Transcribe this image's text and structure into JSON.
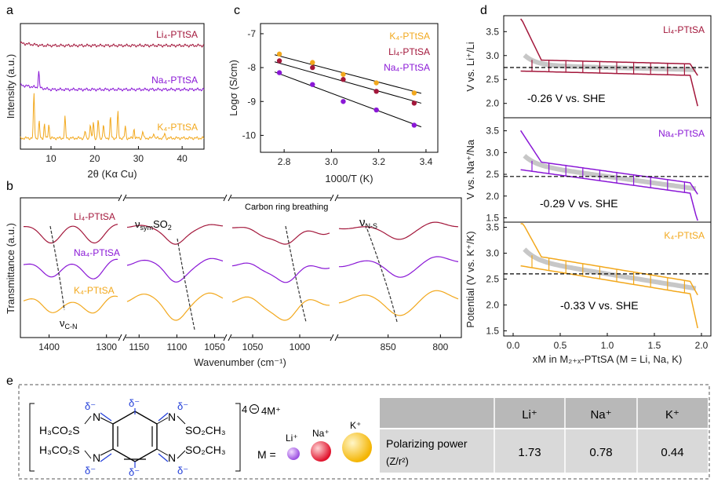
{
  "panel_labels": {
    "a": "a",
    "b": "b",
    "c": "c",
    "d": "d",
    "e": "e"
  },
  "colors": {
    "li": "#a3173b",
    "na": "#8a18d6",
    "k": "#f2a81d",
    "gray": "#c7c7c7",
    "cell_bg": "#d9d9d9"
  },
  "chart_data": [
    {
      "id": "a",
      "type": "line",
      "title": "",
      "xlabel": "2θ (Kα Cu)",
      "ylabel": "Intensity (a.u.)",
      "xlim": [
        3,
        45
      ],
      "xticks": [
        10,
        20,
        30,
        40
      ],
      "series": [
        {
          "name": "Li₄-PTtSA",
          "offset": 2,
          "peaks": []
        },
        {
          "name": "Na₄-PTtSA",
          "offset": 1,
          "peaks": [
            [
              7.2,
              0.35
            ]
          ]
        },
        {
          "name": "K₄-PTtSA",
          "offset": 0,
          "peaks": [
            [
              6.1,
              0.95
            ],
            [
              7.3,
              0.35
            ],
            [
              8.5,
              0.3
            ],
            [
              9.5,
              0.3
            ],
            [
              13.2,
              0.45
            ],
            [
              17.8,
              0.15
            ],
            [
              19,
              0.3
            ],
            [
              19.7,
              0.35
            ],
            [
              20.8,
              0.4
            ],
            [
              22,
              0.3
            ],
            [
              23.6,
              0.45
            ],
            [
              25.3,
              0.55
            ],
            [
              27,
              0.25
            ],
            [
              29,
              0.2
            ],
            [
              31,
              0.15
            ],
            [
              33.5,
              0.12
            ],
            [
              36,
              0.1
            ]
          ]
        }
      ]
    },
    {
      "id": "b",
      "type": "line",
      "xlabel": "Wavenumber (cm⁻¹)",
      "ylabel": "Transmittance (a.u.)",
      "segments": [
        {
          "xlim": [
            1450,
            1275
          ],
          "xticks": [
            "1400",
            "1300"
          ],
          "tick_vals": [
            1400,
            1300
          ]
        },
        {
          "xlim": [
            1170,
            1035
          ],
          "xticks": [
            "1150",
            "1100",
            "1050"
          ],
          "tick_vals": [
            1150,
            1100,
            1050
          ]
        },
        {
          "xlim": [
            1075,
            965
          ],
          "xticks": [
            "1050",
            "1000"
          ],
          "tick_vals": [
            1050,
            1000
          ]
        },
        {
          "xlim": [
            900,
            780
          ],
          "xticks": [
            "850",
            "800"
          ],
          "tick_vals": [
            850,
            800
          ]
        }
      ],
      "series_names": [
        "Li₄-PTtSA",
        "Na₄-PTtSA",
        "K₄-PTtSA"
      ],
      "annotations": {
        "cn": "ν",
        "cn_sub": "C-N",
        "so2": "ν",
        "so2_sub": "sym",
        "so2_tail": "SO",
        "so2_tail_sub": "2",
        "ring": "Carbon ring breathing",
        "ns": "ν",
        "ns_sub": "N-S"
      }
    },
    {
      "id": "c",
      "type": "scatter",
      "xlabel": "1000/T (K)",
      "ylabel": "Logσ (S/cm)",
      "xlim": [
        2.7,
        3.45
      ],
      "ylim": [
        -10.5,
        -6.7
      ],
      "xticks": [
        2.8,
        3.0,
        3.2,
        3.4
      ],
      "yticks": [
        -7,
        -8,
        -9,
        -10
      ],
      "x": [
        2.78,
        2.92,
        3.05,
        3.19,
        3.35
      ],
      "series": [
        {
          "name": "K₄-PTtSA",
          "values": [
            -7.6,
            -7.85,
            -8.2,
            -8.45,
            -8.75
          ],
          "fit": [
            -7.62,
            -8.76
          ]
        },
        {
          "name": "Li₄-PTtSA",
          "values": [
            -7.8,
            -8.0,
            -8.35,
            -8.7,
            -9.05
          ],
          "fit": [
            -7.83,
            -9.05
          ]
        },
        {
          "name": "Na₄-PTtSA",
          "values": [
            -8.15,
            -8.5,
            -9.0,
            -9.25,
            -9.7
          ],
          "fit": [
            -8.13,
            -9.75
          ]
        }
      ]
    },
    {
      "id": "d",
      "type": "line",
      "xlabel": "xM in M₂₊ₓ-PTtSA (M = Li, Na, K)",
      "xlim": [
        -0.1,
        2.1
      ],
      "xticks": [
        0.0,
        0.5,
        1.0,
        1.5,
        2.0
      ],
      "panels": [
        {
          "name": "Li₄-PTtSA",
          "ylabel": "V vs. Li⁺/Li",
          "ylim": [
            1.7,
            3.8
          ],
          "yticks": [
            3.5,
            3.0,
            2.5,
            2.0
          ],
          "dashed": 2.75,
          "note": "-0.26 V vs. SHE"
        },
        {
          "name": "Na₄-PTtSA",
          "ylabel": "V vs. Na⁺/Na",
          "ylim": [
            1.4,
            3.8
          ],
          "yticks": [
            3.5,
            3.0,
            2.5,
            2.0,
            1.5
          ],
          "dashed": 2.45,
          "note": "-0.29 V vs. SHE"
        },
        {
          "name": "K₄-PTtSA",
          "ylabel": "Potential (V vs. K⁺/K)",
          "ylim": [
            1.4,
            3.6
          ],
          "yticks": [
            3.5,
            3.0,
            2.5,
            2.0,
            1.5
          ],
          "dashed": 2.6,
          "note": "-0.33 V vs. SHE"
        }
      ]
    },
    {
      "id": "e",
      "type": "table",
      "columns": [
        "Li⁺",
        "Na⁺",
        "K⁺"
      ],
      "row_label": "Polarizing power",
      "row_label_unit": "(Z/r²)",
      "values": [
        "1.73",
        "0.78",
        "0.44"
      ]
    }
  ],
  "structure": {
    "charge": "4",
    "counter": "4M⁺",
    "m_label": "M =",
    "ions": [
      "Li⁺",
      "Na⁺",
      "K⁺"
    ],
    "delta": "δ⁻",
    "groups": [
      "H₃CO₂S",
      "H₃CO₂S",
      "SO₂CH₃",
      "SO₂CH₃"
    ],
    "n": "N"
  }
}
